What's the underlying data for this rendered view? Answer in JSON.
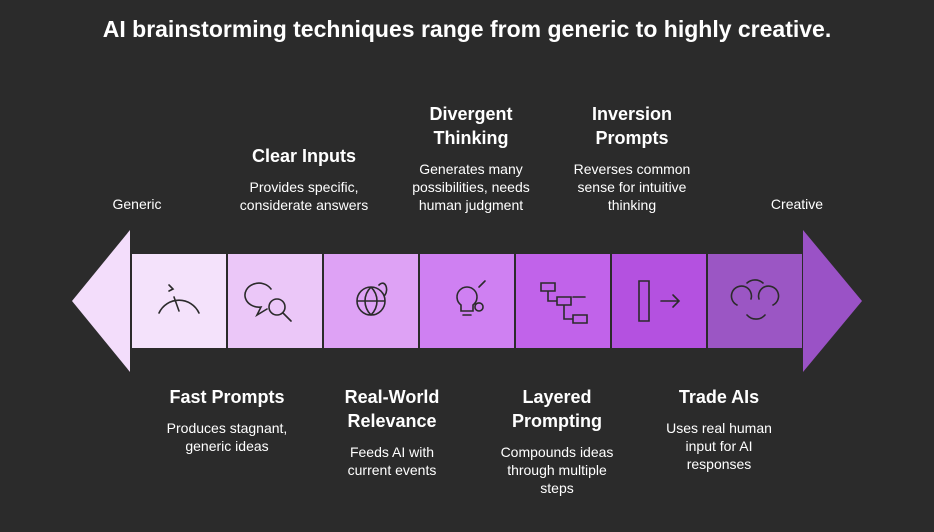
{
  "title": "AI brainstorming techniques range from generic to highly creative.",
  "ends": {
    "left": "Generic",
    "right": "Creative"
  },
  "items": [
    {
      "title": "Fast Prompts",
      "description": "Produces stagnant, generic ideas"
    },
    {
      "title": "Clear Inputs",
      "description": "Provides specific, considerate answers"
    },
    {
      "title": "Real-World Relevance",
      "description": "Feeds AI with current events"
    },
    {
      "title": "Divergent Thinking",
      "description": "Generates many possibilities, needs human judgment"
    },
    {
      "title": "Layered Prompting",
      "description": "Compounds ideas through multiple steps"
    },
    {
      "title": "Inversion Prompts",
      "description": "Reverses common sense for intuitive thinking"
    },
    {
      "title": "Trade AIs",
      "description": "Uses real human input for AI responses"
    }
  ]
}
